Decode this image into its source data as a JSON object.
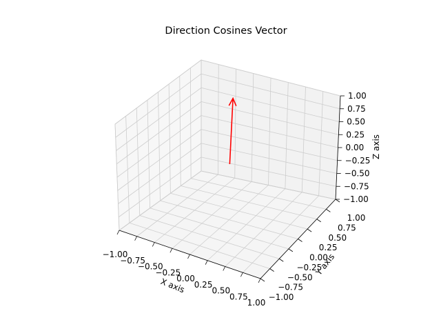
{
  "chart_data": {
    "type": "3d-vector",
    "title": "Direction Cosines Vector",
    "xlabel": "X axis",
    "ylabel": "Y axis",
    "zlabel": "Z axis",
    "xlim": [
      -1.0,
      1.0
    ],
    "ylim": [
      -1.0,
      1.0
    ],
    "zlim": [
      -1.0,
      1.0
    ],
    "ticks": [
      -1.0,
      -0.75,
      -0.5,
      -0.25,
      0.0,
      0.25,
      0.5,
      0.75,
      1.0
    ],
    "tick_labels": [
      "−1.00",
      "−0.75",
      "−0.50",
      "−0.25",
      "0.00",
      "0.25",
      "0.50",
      "0.75",
      "1.00"
    ],
    "grid": true,
    "vector": {
      "origin": [
        0,
        0,
        0
      ],
      "direction": [
        -0.267,
        0.535,
        0.802
      ],
      "length": 1.0,
      "color": "#ff0000"
    }
  },
  "colors": {
    "pane_back": "#f2f2f2",
    "pane_side": "#f7f7f7",
    "pane_floor": "#f5f5f5",
    "grid": "#cdcdcd",
    "axis": "#000000"
  }
}
